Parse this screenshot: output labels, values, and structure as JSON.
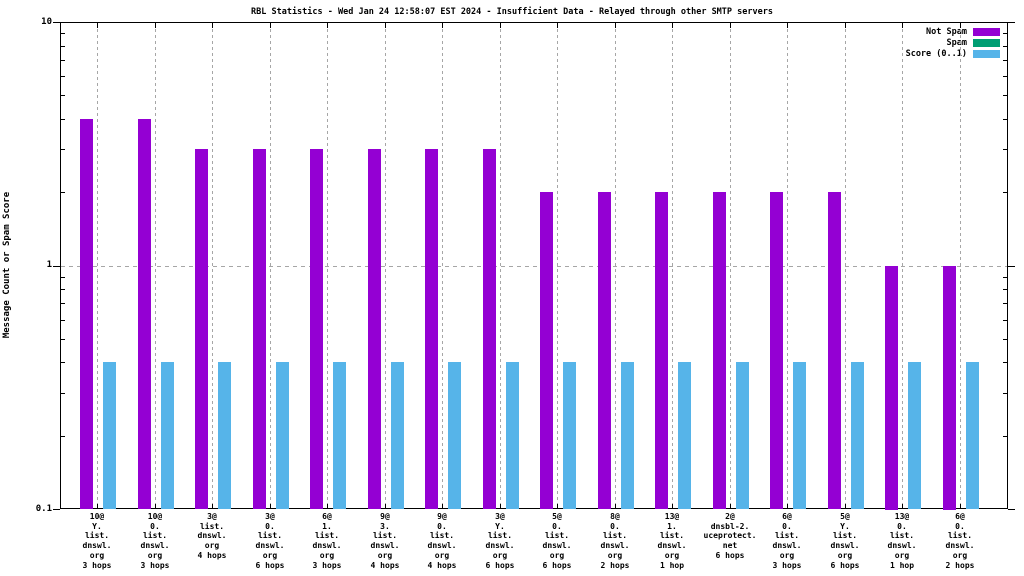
{
  "title": "RBL Statistics - Wed Jan 24 12:58:07 EST 2024 - Insufficient Data - Relayed through other SMTP servers",
  "chart_data": {
    "type": "bar",
    "title": "RBL Statistics - Wed Jan 24 12:58:07 EST 2024 - Insufficient Data - Relayed through other SMTP servers",
    "xlabel": "",
    "ylabel": "Message Count or Spam Score",
    "yscale": "log",
    "ylim": [
      0.1,
      10
    ],
    "yticks": [
      "10",
      "1",
      "0.1"
    ],
    "grid": {
      "vertical_dashed_per_category": true,
      "horizontal_dashed_at_value": 1
    },
    "legend_position": "top-right-inside",
    "background": "#ffffff",
    "grid_color": "#a6a6a6",
    "categories": [
      [
        "10@",
        "Y.",
        "list.",
        "dnswl.",
        "org",
        "3 hops"
      ],
      [
        "10@",
        "0.",
        "list.",
        "dnswl.",
        "org",
        "3 hops"
      ],
      [
        "3@",
        "list.",
        "dnswl.",
        "org",
        "4 hops"
      ],
      [
        "3@",
        "0.",
        "list.",
        "dnswl.",
        "org",
        "6 hops"
      ],
      [
        "6@",
        "1.",
        "list.",
        "dnswl.",
        "org",
        "3 hops"
      ],
      [
        "9@",
        "3.",
        "list.",
        "dnswl.",
        "org",
        "4 hops"
      ],
      [
        "9@",
        "0.",
        "list.",
        "dnswl.",
        "org",
        "4 hops"
      ],
      [
        "3@",
        "Y.",
        "list.",
        "dnswl.",
        "org",
        "6 hops"
      ],
      [
        "5@",
        "0.",
        "list.",
        "dnswl.",
        "org",
        "6 hops"
      ],
      [
        "8@",
        "0.",
        "list.",
        "dnswl.",
        "org",
        "2 hops"
      ],
      [
        "13@",
        "1.",
        "list.",
        "dnswl.",
        "org",
        "1 hop"
      ],
      [
        "2@",
        "dnsbl-2.",
        "uceprotect.",
        "net",
        "6 hops"
      ],
      [
        "6@",
        "0.",
        "list.",
        "dnswl.",
        "org",
        "3 hops"
      ],
      [
        "5@",
        "Y.",
        "list.",
        "dnswl.",
        "org",
        "6 hops"
      ],
      [
        "13@",
        "0.",
        "list.",
        "dnswl.",
        "org",
        "1 hop"
      ],
      [
        "6@",
        "0.",
        "list.",
        "dnswl.",
        "org",
        "2 hops"
      ]
    ],
    "series": [
      {
        "name": "Not Spam",
        "color": "#9400d3",
        "values": [
          4,
          4,
          3,
          3,
          3,
          3,
          3,
          3,
          2,
          2,
          2,
          2,
          2,
          2,
          1,
          1
        ]
      },
      {
        "name": "Spam",
        "color": "#009e73",
        "values": [
          0,
          0,
          0,
          0,
          0,
          0,
          0,
          0,
          0,
          0,
          0,
          0,
          0,
          0,
          0,
          0
        ]
      },
      {
        "name": "Score (0..1)",
        "color": "#56b4e9",
        "values": [
          0.4,
          0.4,
          0.4,
          0.4,
          0.4,
          0.4,
          0.4,
          0.4,
          0.4,
          0.4,
          0.4,
          0.4,
          0.4,
          0.4,
          0.4,
          0.4
        ]
      }
    ]
  }
}
